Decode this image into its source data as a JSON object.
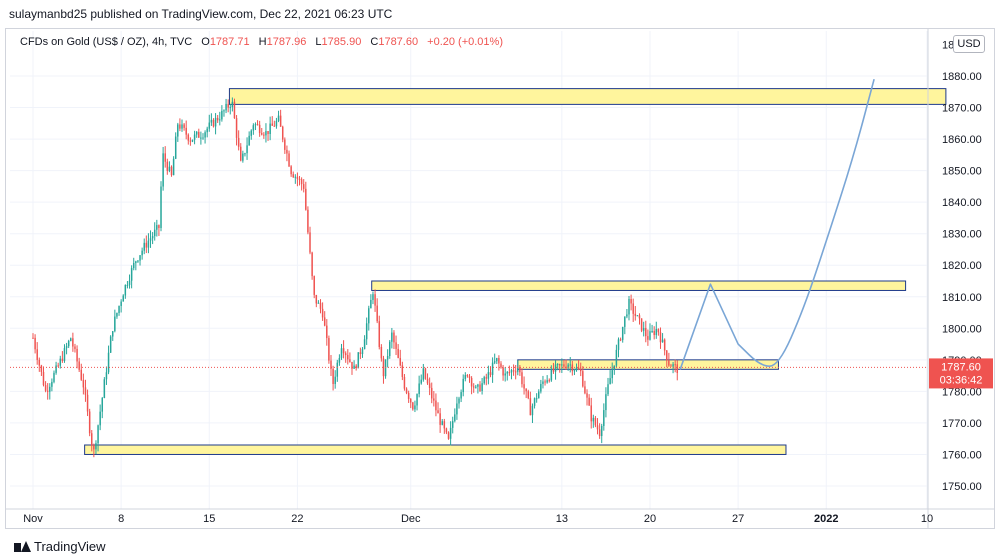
{
  "header": {
    "publisher": "sulaymanbd25 published on TradingView.com, Dec 22, 2021 06:23 UTC"
  },
  "legend": {
    "symbol": "CFDs on Gold (US$ / OZ), 4h, TVC",
    "open_label": "O",
    "open": "1787.71",
    "high_label": "H",
    "high": "1787.96",
    "low_label": "L",
    "low": "1785.90",
    "close_label": "C",
    "close": "1787.60",
    "change": "+0.20 (+0.01%)"
  },
  "currency_button": "USD",
  "price_tag": {
    "price": "1787.60",
    "countdown": "03:36:42",
    "color": "#ef5350"
  },
  "footer": {
    "brand": "TradingView"
  },
  "colors": {
    "up": "#26a69a",
    "down": "#ef5350",
    "zone_fill": "#fff59d",
    "zone_stroke": "#1e3a8a",
    "projection": "#7aa6d6"
  },
  "chart_data": {
    "type": "candlestick",
    "y_axis": {
      "min": 1745,
      "max": 1885,
      "ticks": [
        "1750.00",
        "1760.00",
        "1770.00",
        "1780.00",
        "1790.00",
        "1800.00",
        "1810.00",
        "1820.00",
        "1830.00",
        "1840.00",
        "1850.00",
        "1860.00",
        "1870.00",
        "1880.00"
      ],
      "top_tick_partial": "18"
    },
    "x_axis": {
      "ticks": [
        {
          "label": "Nov",
          "day": 0
        },
        {
          "label": "8",
          "day": 7
        },
        {
          "label": "15",
          "day": 14
        },
        {
          "label": "22",
          "day": 21
        },
        {
          "label": "Dec",
          "day": 30
        },
        {
          "label": "13",
          "day": 42
        },
        {
          "label": "20",
          "day": 49
        },
        {
          "label": "27",
          "day": 56
        },
        {
          "label": "2022",
          "day": 63
        },
        {
          "label": "10",
          "day": 71
        }
      ]
    },
    "anchors": [
      {
        "day": 0,
        "price": 1797
      },
      {
        "day": 1,
        "price": 1780
      },
      {
        "day": 2,
        "price": 1788
      },
      {
        "day": 3,
        "price": 1797
      },
      {
        "day": 4,
        "price": 1782
      },
      {
        "day": 4.8,
        "price": 1760
      },
      {
        "day": 5.5,
        "price": 1778
      },
      {
        "day": 6.3,
        "price": 1800
      },
      {
        "day": 7.2,
        "price": 1812
      },
      {
        "day": 8.2,
        "price": 1822
      },
      {
        "day": 9.2,
        "price": 1828
      },
      {
        "day": 10,
        "price": 1832
      },
      {
        "day": 10.3,
        "price": 1855
      },
      {
        "day": 11,
        "price": 1848
      },
      {
        "day": 11.5,
        "price": 1865
      },
      {
        "day": 12.5,
        "price": 1860
      },
      {
        "day": 13.5,
        "price": 1862
      },
      {
        "day": 15,
        "price": 1868
      },
      {
        "day": 15.8,
        "price": 1872
      },
      {
        "day": 16.5,
        "price": 1852
      },
      {
        "day": 17.5,
        "price": 1865
      },
      {
        "day": 18.5,
        "price": 1862
      },
      {
        "day": 19.5,
        "price": 1866
      },
      {
        "day": 20.5,
        "price": 1850
      },
      {
        "day": 21.5,
        "price": 1845
      },
      {
        "day": 22.3,
        "price": 1810
      },
      {
        "day": 23,
        "price": 1805
      },
      {
        "day": 23.8,
        "price": 1782
      },
      {
        "day": 24.5,
        "price": 1795
      },
      {
        "day": 25.5,
        "price": 1787
      },
      {
        "day": 26.2,
        "price": 1795
      },
      {
        "day": 27,
        "price": 1812
      },
      {
        "day": 27.8,
        "price": 1785
      },
      {
        "day": 28.5,
        "price": 1798
      },
      {
        "day": 29.5,
        "price": 1782
      },
      {
        "day": 30.2,
        "price": 1775
      },
      {
        "day": 31,
        "price": 1786
      },
      {
        "day": 32.2,
        "price": 1772
      },
      {
        "day": 33,
        "price": 1764
      },
      {
        "day": 33.7,
        "price": 1778
      },
      {
        "day": 34.5,
        "price": 1786
      },
      {
        "day": 35.2,
        "price": 1780
      },
      {
        "day": 36,
        "price": 1784
      },
      {
        "day": 36.8,
        "price": 1790
      },
      {
        "day": 37.5,
        "price": 1785
      },
      {
        "day": 38.5,
        "price": 1788
      },
      {
        "day": 39.5,
        "price": 1774
      },
      {
        "day": 40.5,
        "price": 1783
      },
      {
        "day": 41.5,
        "price": 1787
      },
      {
        "day": 42.5,
        "price": 1789
      },
      {
        "day": 43.5,
        "price": 1786
      },
      {
        "day": 44.3,
        "price": 1772
      },
      {
        "day": 45,
        "price": 1767
      },
      {
        "day": 45.7,
        "price": 1782
      },
      {
        "day": 46.5,
        "price": 1795
      },
      {
        "day": 47.3,
        "price": 1808
      },
      {
        "day": 48,
        "price": 1803
      },
      {
        "day": 48.8,
        "price": 1797
      },
      {
        "day": 49.6,
        "price": 1800
      },
      {
        "day": 50.5,
        "price": 1789
      },
      {
        "day": 51.2,
        "price": 1787
      }
    ],
    "zones": [
      {
        "start_day": 15.6,
        "end_day": 72.5,
        "top": 1876,
        "bottom": 1871
      },
      {
        "start_day": 26.9,
        "end_day": 69.3,
        "top": 1815,
        "bottom": 1812
      },
      {
        "start_day": 38.5,
        "end_day": 59.2,
        "top": 1790,
        "bottom": 1787
      },
      {
        "start_day": 4.1,
        "end_day": 59.8,
        "top": 1763,
        "bottom": 1760
      }
    ],
    "projection": [
      {
        "day": 51.4,
        "price": 1787
      },
      {
        "day": 53.8,
        "price": 1814
      },
      {
        "day": 56,
        "price": 1795
      },
      {
        "day": 57.8,
        "price": 1788
      },
      {
        "day": 59.2,
        "price": 1788
      },
      {
        "day": 61.2,
        "price": 1806
      },
      {
        "day": 63.2,
        "price": 1830
      },
      {
        "day": 65.2,
        "price": 1855
      },
      {
        "day": 66.8,
        "price": 1879
      }
    ],
    "last_price": 1787.6
  }
}
